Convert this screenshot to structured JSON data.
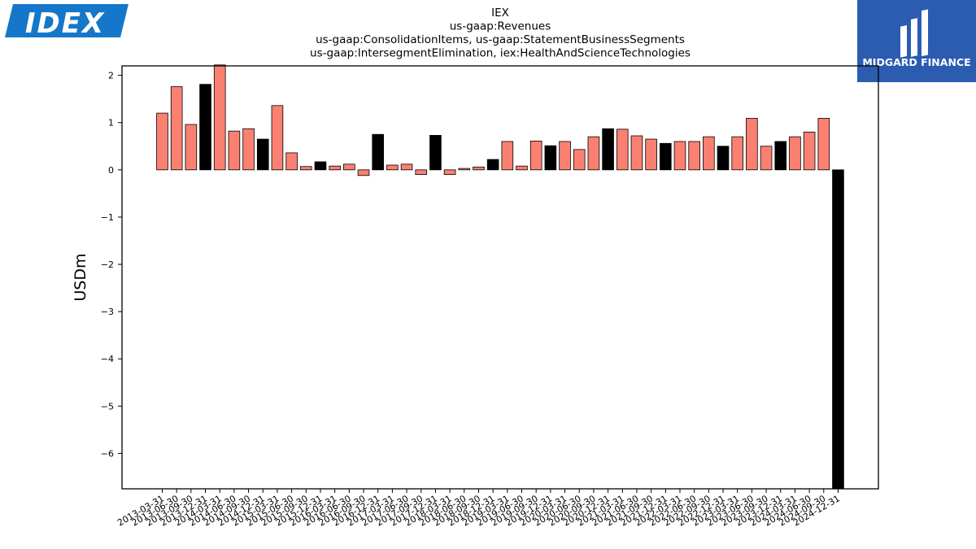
{
  "logos": {
    "left": {
      "text": "IDEX",
      "color": "#1577c9"
    },
    "right": {
      "text": "MIDGARD FINANCE",
      "bg": "#2b5cb0"
    }
  },
  "chart_data": {
    "type": "bar",
    "title_lines": [
      "IEX",
      "us-gaap:Revenues",
      "us-gaap:ConsolidationItems, us-gaap:StatementBusinessSegments",
      "us-gaap:IntersegmentElimination, iex:HealthAndScienceTechnologies"
    ],
    "xlabel": "",
    "ylabel": "USDm",
    "ylim": [
      -6.75,
      2.2
    ],
    "yticks": [
      2,
      1,
      0,
      -1,
      -2,
      -3,
      -4,
      -5,
      -6
    ],
    "grid": false,
    "colors": {
      "quarter": "#fa8072",
      "year_end": "#000000"
    },
    "categories": [
      "2013-03-31",
      "2013-06-30",
      "2013-09-30",
      "2013-12-31",
      "2014-03-31",
      "2014-06-30",
      "2014-09-30",
      "2014-12-31",
      "2015-03-31",
      "2015-06-30",
      "2015-09-30",
      "2015-12-31",
      "2016-03-31",
      "2016-06-30",
      "2016-09-30",
      "2016-12-31",
      "2017-03-31",
      "2017-06-30",
      "2017-09-30",
      "2017-12-31",
      "2018-03-31",
      "2018-06-30",
      "2018-09-30",
      "2018-12-31",
      "2019-03-31",
      "2019-06-30",
      "2019-09-30",
      "2019-12-31",
      "2020-03-31",
      "2020-06-30",
      "2020-09-30",
      "2020-12-31",
      "2021-03-31",
      "2021-06-30",
      "2021-09-30",
      "2021-12-31",
      "2022-03-31",
      "2022-06-30",
      "2022-09-30",
      "2022-12-31",
      "2023-03-31",
      "2023-06-30",
      "2023-09-30",
      "2023-12-31",
      "2024-03-31",
      "2024-06-30",
      "2024-09-30",
      "2024-12-31"
    ],
    "values": [
      1.2,
      1.76,
      0.96,
      1.81,
      2.22,
      0.82,
      0.87,
      0.65,
      1.36,
      0.36,
      0.07,
      0.17,
      0.08,
      0.12,
      -0.12,
      0.75,
      0.1,
      0.12,
      -0.1,
      0.73,
      -0.1,
      0.03,
      0.06,
      0.22,
      0.6,
      0.08,
      0.61,
      0.51,
      0.6,
      0.43,
      0.7,
      0.87,
      0.86,
      0.72,
      0.65,
      0.56,
      0.6,
      0.6,
      0.7,
      0.5,
      0.7,
      1.09,
      0.5,
      0.6,
      0.7,
      0.8,
      1.09,
      -6.75
    ],
    "highlight": [
      false,
      false,
      false,
      true,
      false,
      false,
      false,
      true,
      false,
      false,
      false,
      true,
      false,
      false,
      false,
      true,
      false,
      false,
      false,
      true,
      false,
      false,
      false,
      true,
      false,
      false,
      false,
      true,
      false,
      false,
      false,
      true,
      false,
      false,
      false,
      true,
      false,
      false,
      false,
      true,
      false,
      false,
      false,
      true,
      false,
      false,
      false,
      true
    ]
  }
}
